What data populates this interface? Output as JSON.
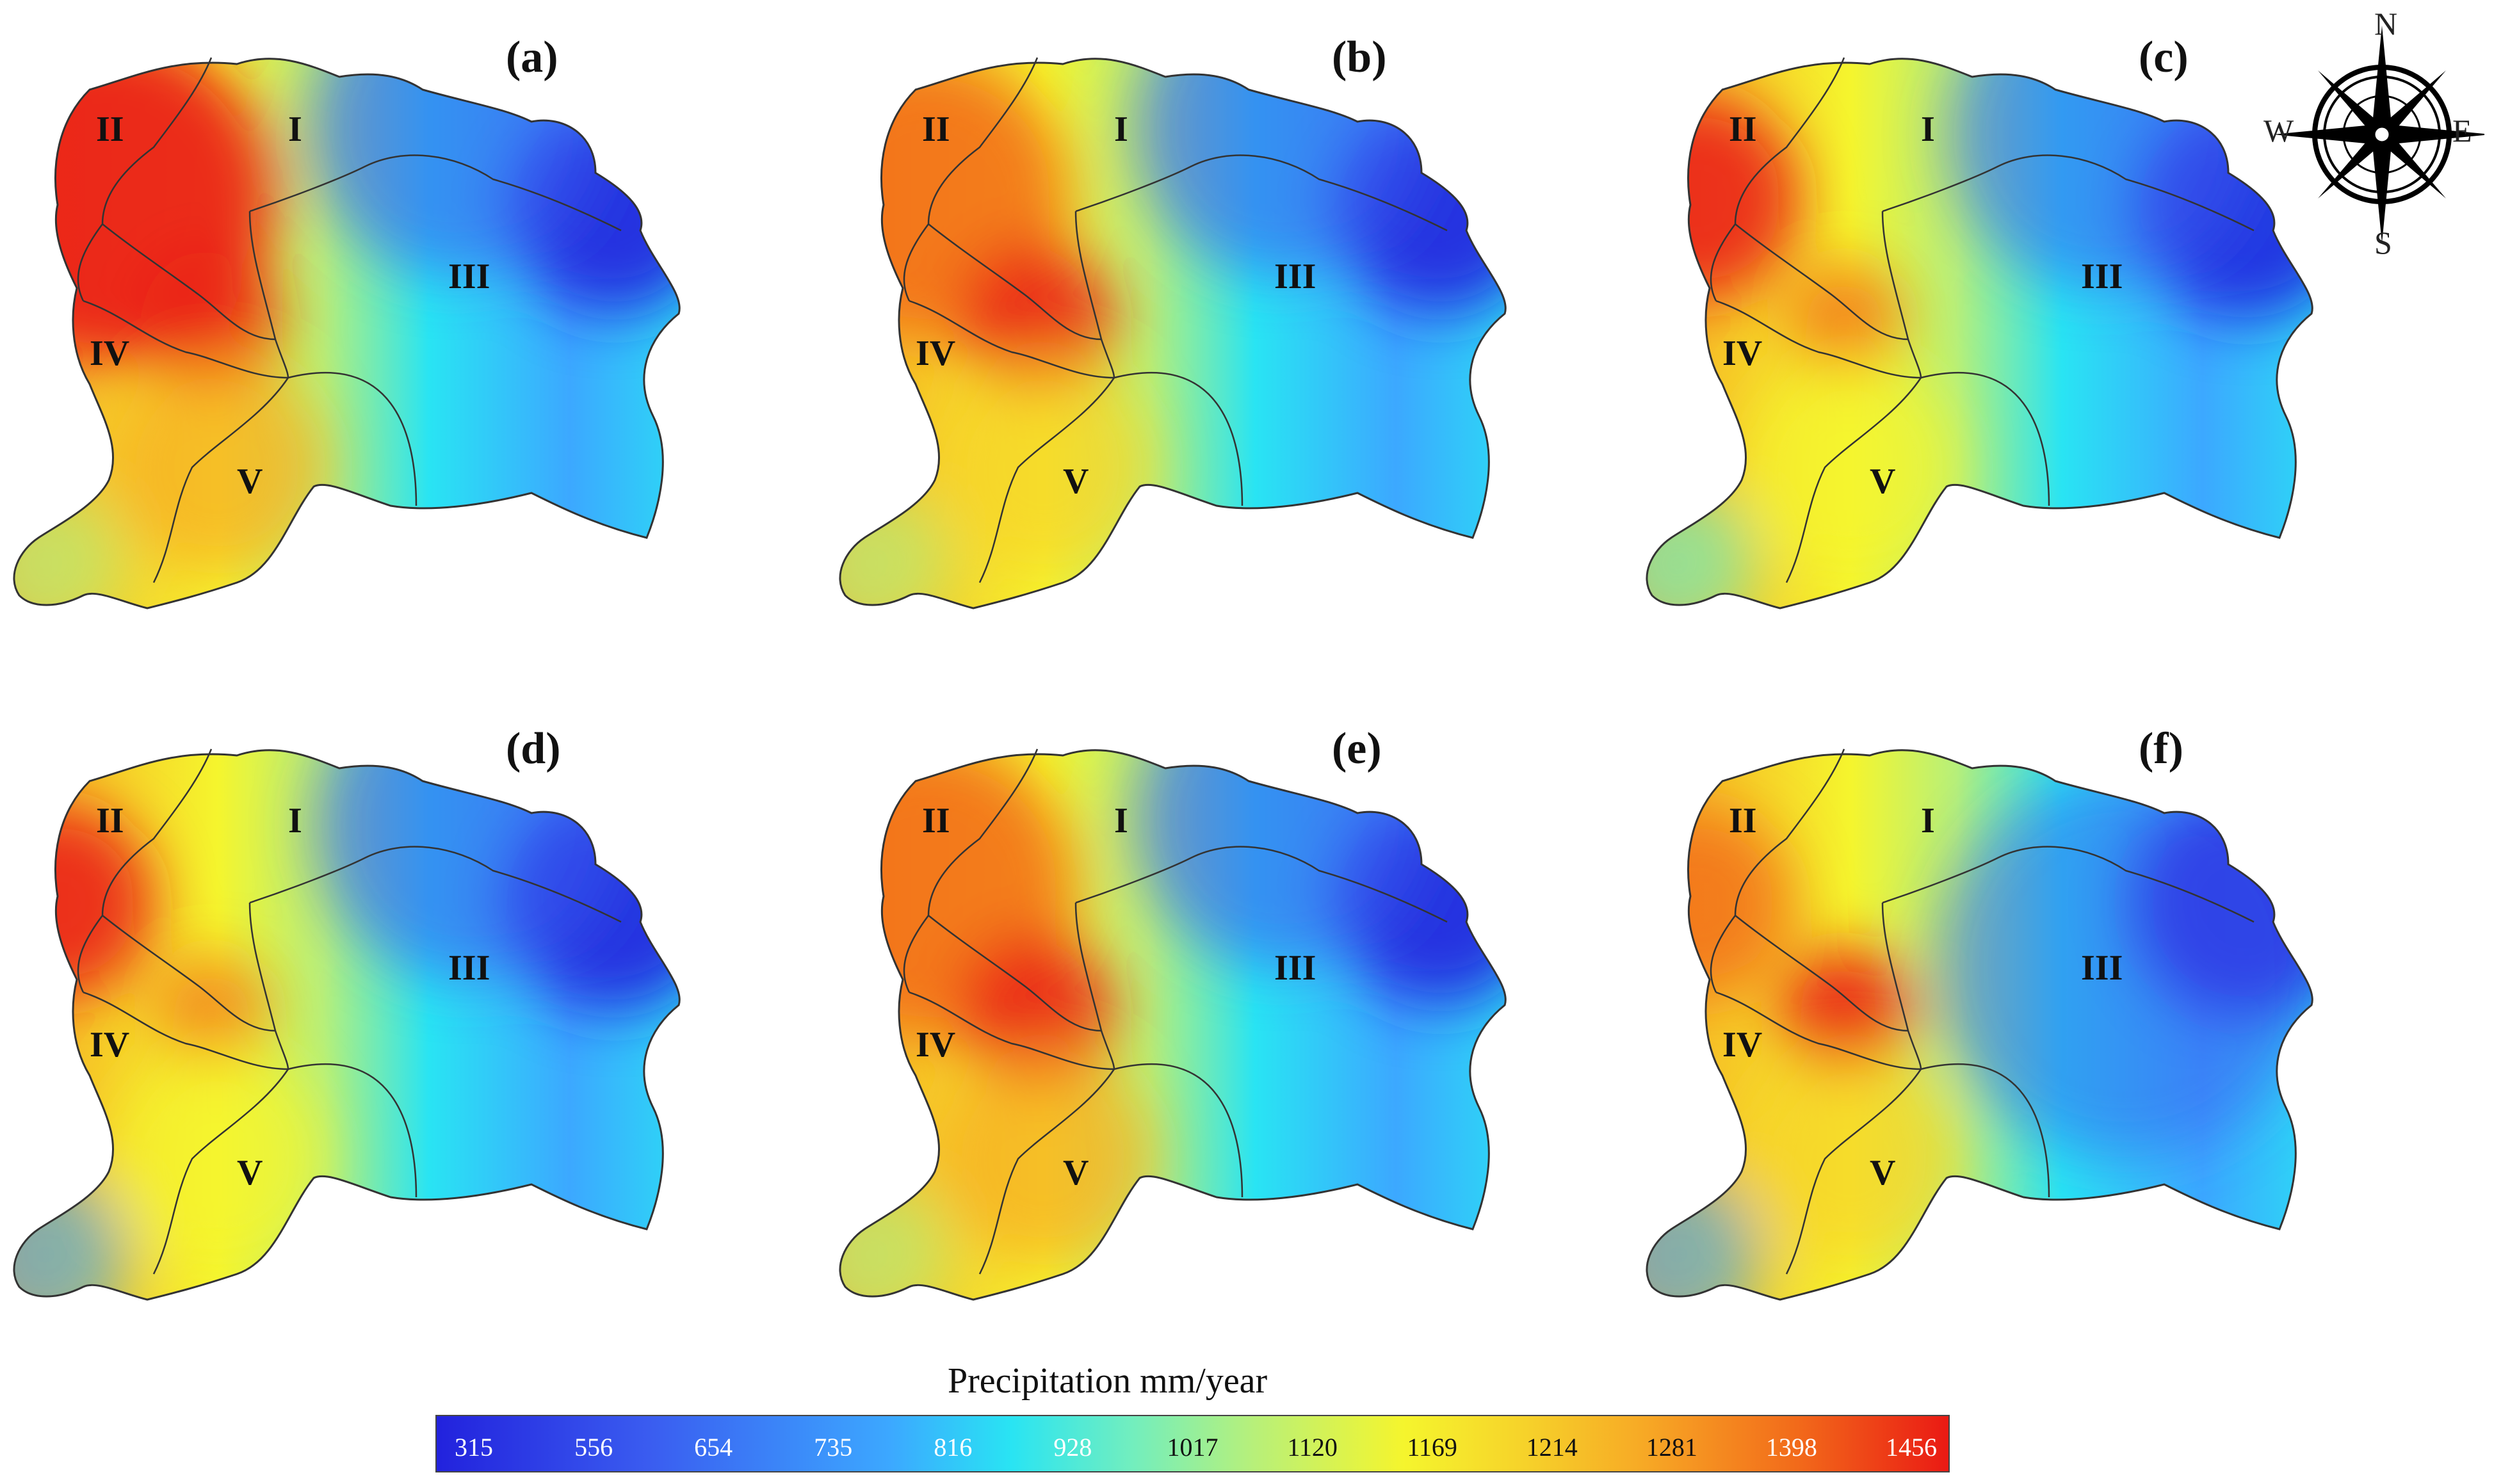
{
  "panels": [
    {
      "label": "(a)",
      "scheme": "a"
    },
    {
      "label": "(b)",
      "scheme": "b"
    },
    {
      "label": "(c)",
      "scheme": "c"
    },
    {
      "label": "(d)",
      "scheme": "d"
    },
    {
      "label": "(e)",
      "scheme": "e"
    },
    {
      "label": "(f)",
      "scheme": "f"
    }
  ],
  "regions": {
    "r1": "I",
    "r2": "II",
    "r3": "III",
    "r4": "IV",
    "r5": "V"
  },
  "compass": {
    "n": "N",
    "s": "S",
    "e": "E",
    "w": "W"
  },
  "legend": {
    "title": "Precipitation mm/year",
    "ticks": [
      "315",
      "556",
      "654",
      "735",
      "816",
      "928",
      "1017",
      "1120",
      "1169",
      "1214",
      "1281",
      "1398",
      "1456"
    ]
  },
  "colors": {
    "low": "#2222dd",
    "mid_low": "#29e4f3",
    "mid": "#f5f52d",
    "high": "#ea1a14"
  }
}
